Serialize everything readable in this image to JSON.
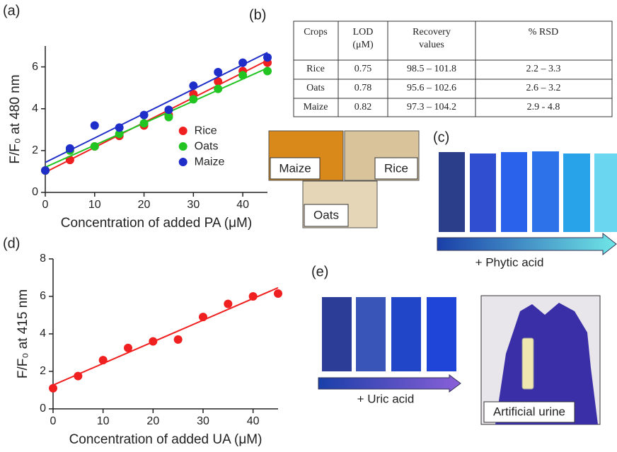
{
  "chart_data": [
    {
      "type": "scatter",
      "trend_line": true,
      "ylabel": "F/F₀ at 480 nm",
      "xlabel": "Concentration of added PA (μM)",
      "x": [
        0,
        5,
        10,
        15,
        20,
        25,
        30,
        35,
        40,
        45
      ],
      "series": [
        {
          "name": "Rice",
          "color": "#f02020",
          "values": [
            1.05,
            1.55,
            2.2,
            2.7,
            3.2,
            3.7,
            4.7,
            5.3,
            5.8,
            6.2
          ]
        },
        {
          "name": "Oats",
          "color": "#22c422",
          "values": [
            1.05,
            2.0,
            2.2,
            2.8,
            3.3,
            3.6,
            4.45,
            4.95,
            5.6,
            5.8
          ]
        },
        {
          "name": "Maize",
          "color": "#1f2ec8",
          "values": [
            1.05,
            2.1,
            3.2,
            3.1,
            3.7,
            3.95,
            5.1,
            5.75,
            6.2,
            6.45
          ]
        }
      ],
      "xlim": [
        0,
        45
      ],
      "xticks": [
        0,
        10,
        20,
        30,
        40
      ],
      "ylim": [
        0,
        7
      ],
      "yticks": [
        0,
        2,
        4,
        6
      ],
      "legend": "center-right"
    },
    {
      "type": "scatter",
      "trend_line": true,
      "ylabel": "F/F₀ at 415 nm",
      "xlabel": "Concentration of added UA (μM)",
      "x": [
        0,
        5,
        10,
        15,
        20,
        25,
        30,
        35,
        40,
        45
      ],
      "series": [
        {
          "color": "#f02020",
          "values": [
            1.1,
            1.75,
            2.6,
            3.25,
            3.6,
            3.7,
            4.9,
            5.6,
            6.0,
            6.15
          ]
        }
      ],
      "xlim": [
        0,
        45
      ],
      "xticks": [
        0,
        10,
        20,
        30,
        40
      ],
      "ylim": [
        0,
        8
      ],
      "yticks": [
        0,
        2,
        4,
        6,
        8
      ]
    }
  ],
  "panels": {
    "a": "(a)",
    "b": "(b)",
    "c": "(c)",
    "d": "(d)",
    "e": "(e)"
  },
  "table": {
    "header": [
      "Crops",
      [
        "LOD",
        "(μM)"
      ],
      [
        "Recovery",
        "values"
      ],
      "% RSD"
    ],
    "rows": [
      [
        "Rice",
        "0.75",
        "98.5 – 101.8",
        "2.2 – 3.3"
      ],
      [
        "Oats",
        "0.78",
        "95.6 – 102.6",
        "2.6 – 3.2"
      ],
      [
        "Maize",
        "0.82",
        "97.3 – 104.2",
        "2.9 - 4.8"
      ]
    ]
  },
  "photos": [
    "Maize",
    "Rice",
    "Oats",
    "Artificial urine"
  ],
  "arrows": [
    "+ Phytic acid",
    "+ Uric acid"
  ]
}
